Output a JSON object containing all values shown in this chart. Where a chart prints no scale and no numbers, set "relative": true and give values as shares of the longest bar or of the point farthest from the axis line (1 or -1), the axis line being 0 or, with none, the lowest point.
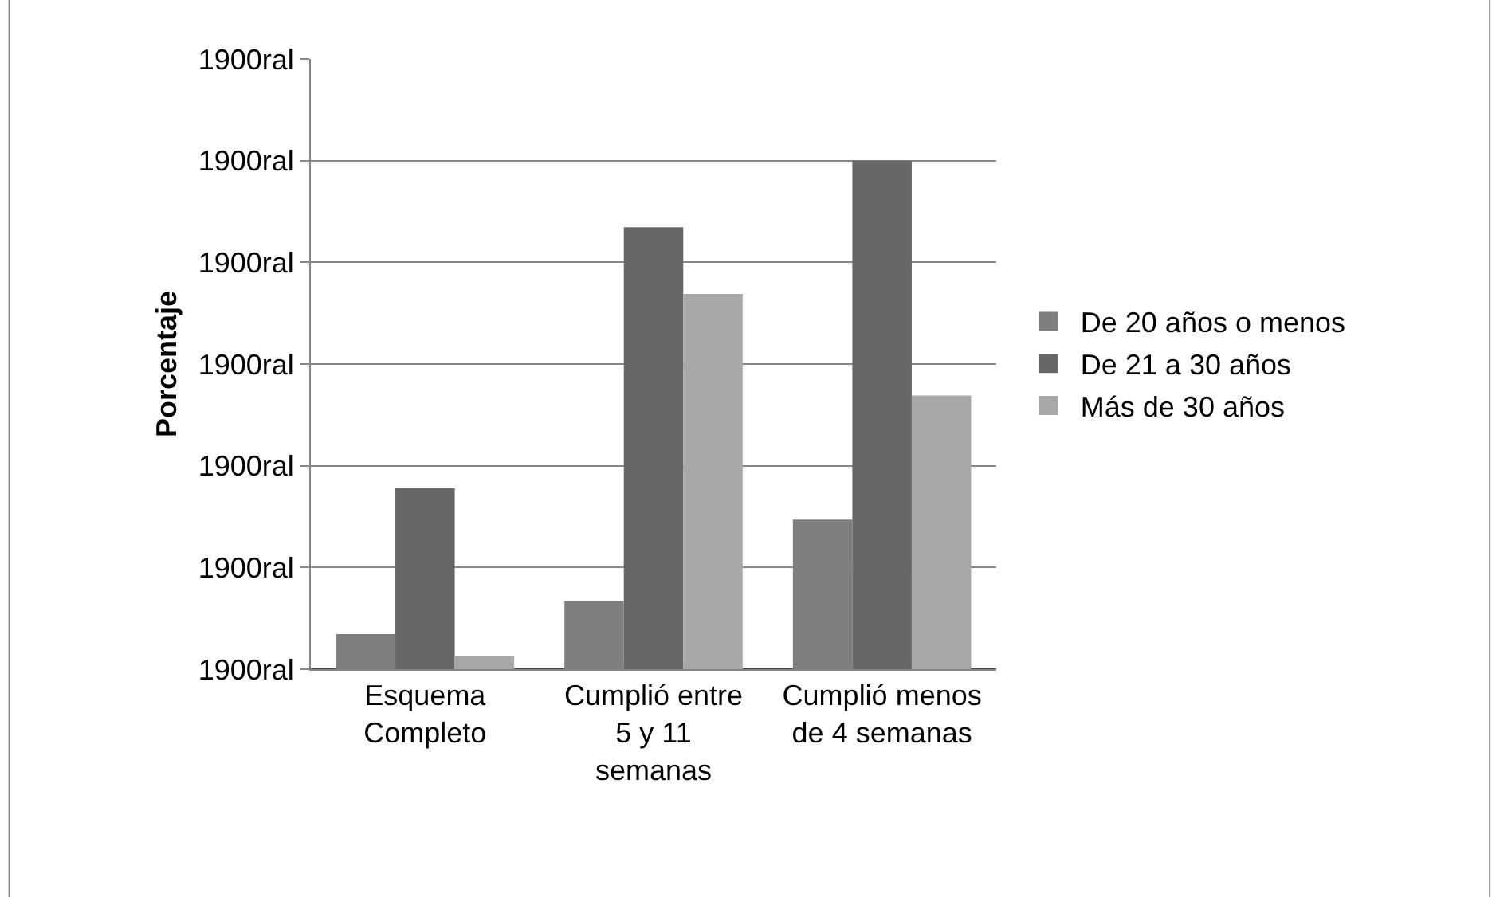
{
  "chart_data": {
    "type": "bar",
    "ylabel": "Porcentaje",
    "relative": true,
    "categories": [
      "Esquema Completo",
      "Cumplió entre 5 y 11 semanas",
      "Cumplió menos de 4 semanas"
    ],
    "series": [
      {
        "name": "De 20 años o menos",
        "color": "#7f7f7f",
        "values": [
          0.069,
          0.134,
          0.294
        ]
      },
      {
        "name": "De 21 a 30 años",
        "color": "#676767",
        "values": [
          0.356,
          0.869,
          1.0
        ]
      },
      {
        "name": "Más de 30 años",
        "color": "#a8a8a8",
        "values": [
          0.025,
          0.738,
          0.538
        ]
      }
    ],
    "annotations": [
      "1900ral",
      "1900ral",
      "1900ral",
      "1900ral",
      "1900ral",
      "1900ral",
      "1900ral"
    ],
    "grid": "y",
    "legend": "right"
  }
}
